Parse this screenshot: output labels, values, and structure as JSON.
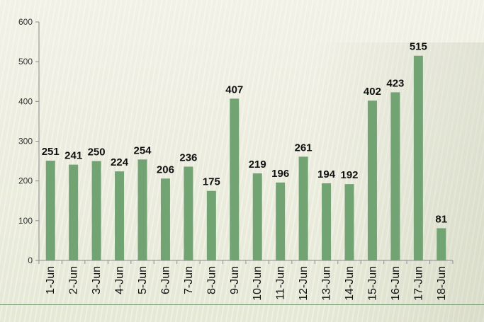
{
  "chart_data": {
    "type": "bar",
    "categories": [
      "1-Jun",
      "2-Jun",
      "3-Jun",
      "4-Jun",
      "5-Jun",
      "6-Jun",
      "7-Jun",
      "8-Jun",
      "9-Jun",
      "10-Jun",
      "11-Jun",
      "12-Jun",
      "13-Jun",
      "14-Jun",
      "15-Jun",
      "16-Jun",
      "17-Jun",
      "18-Jun"
    ],
    "values": [
      251,
      241,
      250,
      224,
      254,
      206,
      236,
      175,
      407,
      219,
      196,
      261,
      194,
      192,
      402,
      423,
      515,
      81
    ],
    "ylim": [
      0,
      600
    ],
    "yticks": [
      0,
      100,
      200,
      300,
      400,
      500,
      600
    ],
    "grid": false,
    "data_labels": true,
    "bar_color": "#72a373",
    "title": "",
    "xlabel": "",
    "ylabel": ""
  }
}
